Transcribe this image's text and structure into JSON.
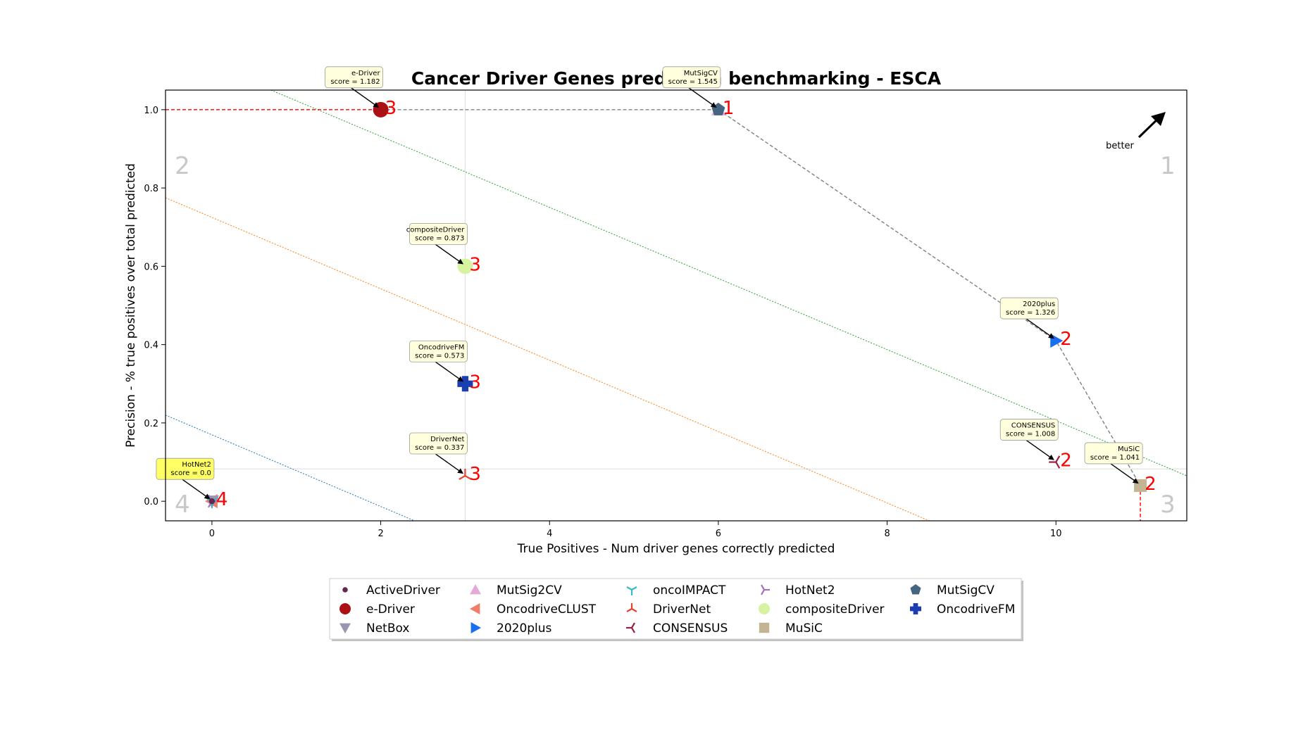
{
  "chart_data": {
    "type": "scatter",
    "title": "Cancer Driver Genes prediction benchmarking - ESCA",
    "xlabel": "True Positives - Num driver genes correctly predicted",
    "ylabel": "Precision - % true positives over total predicted",
    "xlim": [
      -0.55,
      11.55
    ],
    "ylim": [
      -0.05,
      1.05
    ],
    "xticks": [
      0,
      2,
      4,
      6,
      8,
      10
    ],
    "yticks": [
      0.0,
      0.2,
      0.4,
      0.6,
      0.8,
      1.0
    ],
    "grid": false,
    "legend_placement": "bottom-center",
    "better_label": "better",
    "quadrant_labels": [
      "1",
      "2",
      "3",
      "4"
    ],
    "series": [
      {
        "name": "ActiveDriver",
        "x": 0,
        "y": 0.0,
        "marker": "dot",
        "color": "#5e2a4e",
        "rank": "4"
      },
      {
        "name": "e-Driver",
        "x": 2,
        "y": 1.0,
        "marker": "circle",
        "color": "#aa1016",
        "rank": "3",
        "label": "e-Driver",
        "score": "score = 1.182"
      },
      {
        "name": "NetBox",
        "x": 0,
        "y": 0.0,
        "marker": "triangle-down",
        "color": "#9a95b0",
        "rank": "4"
      },
      {
        "name": "MutSig2CV",
        "x": 6,
        "y": 1.0,
        "marker": "triangle-up",
        "color": "#e4a9d6",
        "rank": "1"
      },
      {
        "name": "OncodriveCLUST",
        "x": 0,
        "y": 0.0,
        "marker": "triangle-left",
        "color": "#f07c6a",
        "rank": "4"
      },
      {
        "name": "2020plus",
        "x": 10,
        "y": 0.41,
        "marker": "triangle-right",
        "color": "#1a6ff0",
        "rank": "2",
        "label": "2020plus",
        "score": "score = 1.326"
      },
      {
        "name": "oncoIMPACT",
        "x": 0,
        "y": 0.0,
        "marker": "tri-down",
        "color": "#3ab8c6",
        "rank": "4"
      },
      {
        "name": "DriverNet",
        "x": 3,
        "y": 0.065,
        "marker": "tri-up",
        "color": "#e1462a",
        "rank": "3",
        "label": "DriverNet",
        "score": "score = 0.337"
      },
      {
        "name": "CONSENSUS",
        "x": 10,
        "y": 0.1,
        "marker": "tri-left",
        "color": "#9c1d3f",
        "rank": "2",
        "label": "CONSENSUS",
        "score": "score = 1.008"
      },
      {
        "name": "HotNet2",
        "x": 0,
        "y": 0.0,
        "marker": "tri-right",
        "color": "#a66dc0",
        "rank": "4",
        "label": "HotNet2",
        "score": "score = 0.0"
      },
      {
        "name": "compositeDriver",
        "x": 3,
        "y": 0.6,
        "marker": "circle",
        "color": "#d7f2a0",
        "rank": "3",
        "label": "compositeDriver",
        "score": "score = 0.873"
      },
      {
        "name": "MuSiC",
        "x": 11,
        "y": 0.04,
        "marker": "square",
        "color": "#c3b594",
        "rank": "2",
        "label": "MuSiC",
        "score": "score = 1.041"
      },
      {
        "name": "MutSigCV",
        "x": 6,
        "y": 1.0,
        "marker": "pentagon",
        "color": "#456580",
        "rank": "1",
        "label": "MutSigCV",
        "score": "score = 1.545"
      },
      {
        "name": "OncodriveFM",
        "x": 3,
        "y": 0.3,
        "marker": "plus",
        "color": "#1d3eb0",
        "rank": "3",
        "label": "OncodriveFM",
        "score": "score = 0.573"
      }
    ],
    "pareto_frontier": [
      [
        2,
        1.0
      ],
      [
        6,
        1.0
      ],
      [
        10,
        0.41
      ],
      [
        11,
        0.04
      ]
    ],
    "reference_lines": {
      "median_x": 3,
      "median_y": 0.0825,
      "max_precision_y": 1.0,
      "max_tp_x": 11
    },
    "iso_lines": [
      {
        "color": "#2ca02c",
        "from": [
          0.7,
          1.05
        ],
        "to": [
          11.55,
          0.065
        ]
      },
      {
        "color": "#ff7f0e",
        "from": [
          -0.55,
          0.775
        ],
        "to": [
          8.5,
          -0.05
        ]
      },
      {
        "color": "#1f77b4",
        "from": [
          -0.55,
          0.22
        ],
        "to": [
          2.4,
          -0.05
        ]
      }
    ],
    "colors": {
      "frontier": "#808080",
      "reference": "#ff0000",
      "annotation_box": "#ffffdd",
      "highlight_box": "#ffff66"
    }
  }
}
